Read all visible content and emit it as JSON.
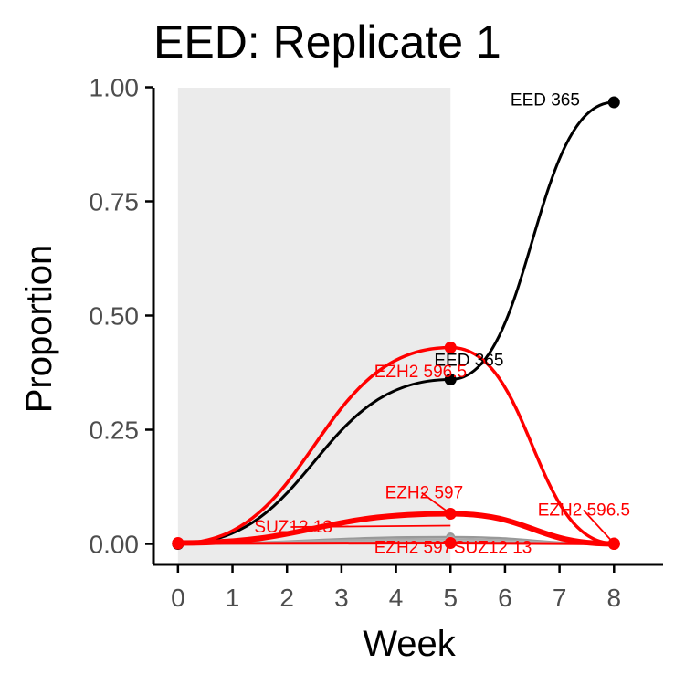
{
  "chart_data": {
    "type": "line",
    "title": "EED: Replicate 1",
    "xlabel": "Week",
    "ylabel": "Proportion",
    "x_ticks": [
      "0",
      "1",
      "2",
      "3",
      "4",
      "5",
      "6",
      "7",
      "8"
    ],
    "y_ticks": [
      "0.00",
      "0.25",
      "0.50",
      "0.75",
      "1.00"
    ],
    "xlim": [
      -0.45,
      8.9
    ],
    "ylim": [
      -0.045,
      1.015
    ],
    "grid": false,
    "shaded_region": {
      "x_start": 0,
      "x_end": 5,
      "color": "#ebebeb"
    },
    "background_series": [
      {
        "x": [
          0,
          5,
          8
        ],
        "values": [
          0.001,
          0.015,
          0.0
        ],
        "color": "#999999"
      },
      {
        "x": [
          0,
          5,
          8
        ],
        "values": [
          0.002,
          0.01,
          0.0
        ],
        "color": "#aaaaaa"
      },
      {
        "x": [
          0,
          5,
          8
        ],
        "values": [
          0.0,
          0.006,
          0.0
        ],
        "color": "#bbbbbb"
      },
      {
        "x": [
          0,
          5,
          8
        ],
        "values": [
          0.003,
          0.004,
          0.0
        ],
        "color": "#a8a8a8"
      }
    ],
    "series": [
      {
        "x": [
          0,
          5,
          8
        ],
        "values": [
          0.0,
          0.36,
          0.967
        ],
        "color": "#000000",
        "width": 3
      },
      {
        "x": [
          0,
          5,
          8
        ],
        "values": [
          0.001,
          0.43,
          0.001
        ],
        "color": "#ff0000",
        "width": 3.5
      },
      {
        "x": [
          0,
          5,
          8
        ],
        "values": [
          0.002,
          0.066,
          0.0
        ],
        "color": "#ff0000",
        "width": 6
      },
      {
        "x": [
          0,
          5,
          8
        ],
        "values": [
          0.001,
          0.002,
          0.0
        ],
        "color": "#ff0000",
        "width": 3
      }
    ],
    "annotations": [
      {
        "text": "EED 365",
        "color": "#000000",
        "x": 6.1,
        "y": 0.96,
        "anchor": "start",
        "leader_to": null
      },
      {
        "text": "EED 365",
        "color": "#000000",
        "x": 4.7,
        "y": 0.39,
        "anchor": "start",
        "leader_to": null
      },
      {
        "text": "EZH2 596.5",
        "color": "#ff0000",
        "x": 3.6,
        "y": 0.365,
        "anchor": "start",
        "leader_to": null
      },
      {
        "text": "EZH2 597",
        "color": "#ff0000",
        "x": 3.8,
        "y": 0.1,
        "anchor": "start",
        "leader_to": [
          5,
          0.066
        ]
      },
      {
        "text": "SUZ12 13",
        "color": "#ff0000",
        "x": 1.4,
        "y": 0.025,
        "anchor": "start",
        "leader_to": [
          5,
          0.04
        ]
      },
      {
        "text": "EZH2 596.5",
        "color": "#ff0000",
        "x": 6.6,
        "y": 0.062,
        "anchor": "start",
        "leader_to": [
          8,
          0.001
        ]
      },
      {
        "text": "EZH2 597",
        "color": "#ff0000",
        "x": 3.6,
        "y": -0.02,
        "anchor": "start",
        "leader_to": null
      },
      {
        "text": "SUZ12 13",
        "color": "#ff0000",
        "x": 5.06,
        "y": -0.02,
        "anchor": "start",
        "leader_to": null
      }
    ]
  }
}
